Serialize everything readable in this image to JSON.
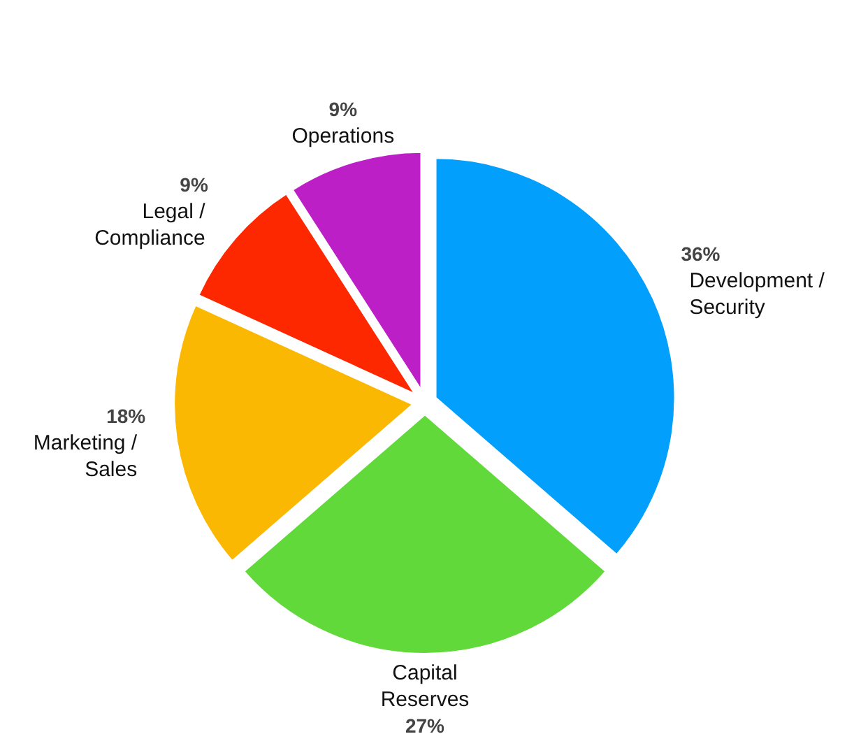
{
  "chart_data": {
    "type": "pie",
    "categories": [
      "Development / Security",
      "Capital Reserves",
      "Marketing / Sales",
      "Legal / Compliance",
      "Operations"
    ],
    "values": [
      36,
      27,
      18,
      9,
      9
    ],
    "value_labels": [
      "36%",
      "27%",
      "18%",
      "9%",
      "9%"
    ],
    "colors": [
      "#039ffd",
      "#61d93a",
      "#fbb802",
      "#fd2700",
      "#bd1fc6"
    ]
  }
}
